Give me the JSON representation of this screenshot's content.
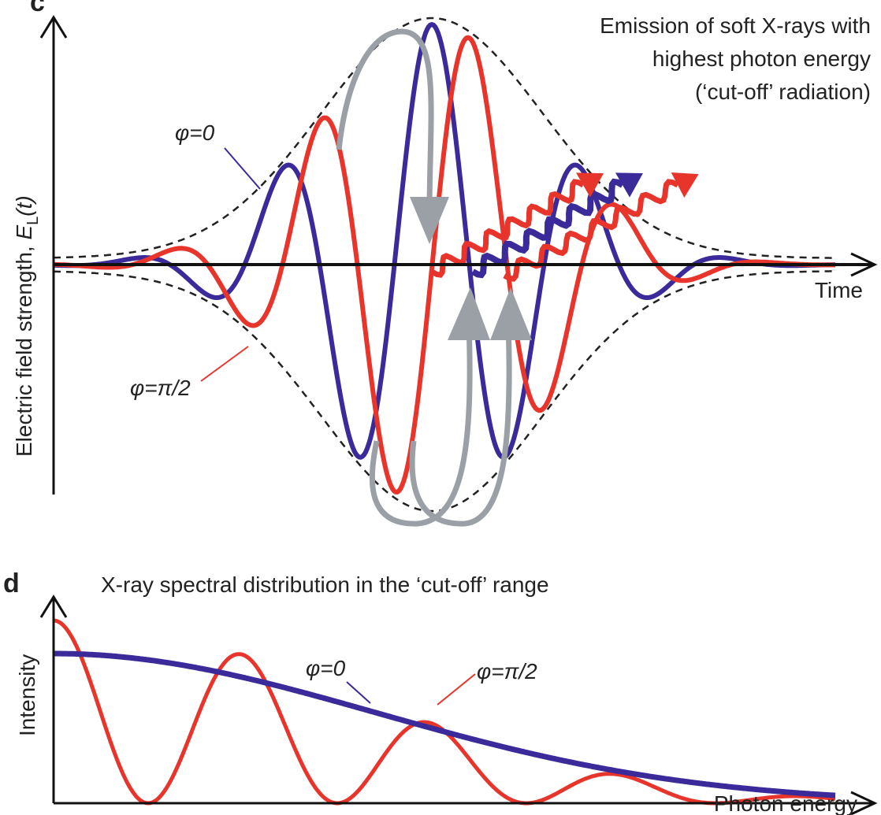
{
  "panel_c": {
    "label": "c",
    "annotation": [
      "Emission of soft X-rays with",
      "highest photon energy",
      "(‘cut-off’ radiation)"
    ],
    "y_axis_label": {
      "text": "Electric field strength, ",
      "symbol": "E",
      "subscript": "L",
      "argument": "(t)"
    },
    "x_axis_label": "Time",
    "curve_labels": [
      "φ=0",
      "φ=π/2"
    ]
  },
  "panel_d": {
    "label": "d",
    "title": "X-ray spectral distribution in the ‘cut-off’ range",
    "y_axis_label": "Intensity",
    "x_axis_label": "Photon energy",
    "curve_labels": [
      "φ=0",
      "φ=π/2"
    ]
  }
}
